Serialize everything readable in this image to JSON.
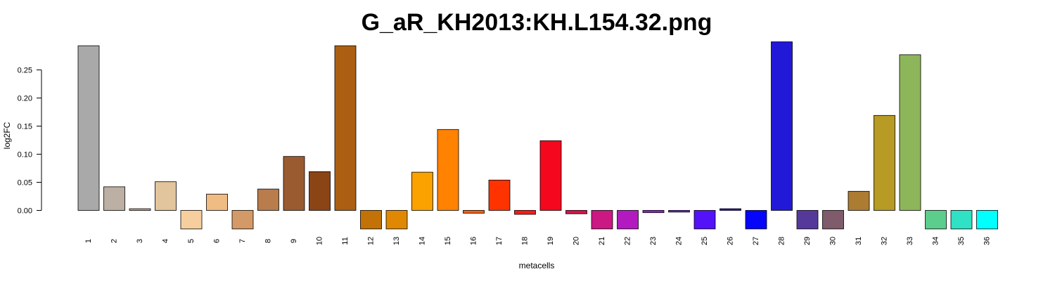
{
  "chart_data": {
    "type": "bar",
    "title": "G_aR_KH2013:KH.L154.32.png",
    "xlabel": "metacells",
    "ylabel": "log2FC",
    "ylim": [
      -0.034,
      0.3
    ],
    "yticks": [
      0.0,
      0.05,
      0.1,
      0.15,
      0.2,
      0.25
    ],
    "ytick_labels": [
      "0.00",
      "0.05",
      "0.10",
      "0.15",
      "0.20",
      "0.25"
    ],
    "categories": [
      "1",
      "2",
      "3",
      "4",
      "5",
      "6",
      "7",
      "8",
      "9",
      "10",
      "11",
      "12",
      "13",
      "14",
      "15",
      "16",
      "17",
      "18",
      "19",
      "20",
      "21",
      "22",
      "23",
      "24",
      "25",
      "26",
      "27",
      "28",
      "29",
      "30",
      "31",
      "32",
      "33",
      "34",
      "35",
      "36"
    ],
    "values": [
      0.293,
      0.042,
      0.003,
      0.051,
      -0.033,
      0.029,
      -0.033,
      0.038,
      0.096,
      0.069,
      0.293,
      -0.033,
      -0.033,
      0.068,
      0.144,
      -0.005,
      0.054,
      -0.007,
      0.124,
      -0.006,
      -0.033,
      -0.033,
      -0.004,
      -0.003,
      -0.033,
      0.003,
      -0.033,
      0.3,
      -0.033,
      -0.033,
      0.034,
      0.169,
      0.277,
      -0.033,
      -0.033,
      -0.033
    ],
    "colors": [
      "#a9a9a9",
      "#bcb0a4",
      "#c9a98a",
      "#e2c49d",
      "#f7cf9f",
      "#efbc84",
      "#d39a68",
      "#b87c4d",
      "#9b5b30",
      "#8b4416",
      "#ac5f12",
      "#c27207",
      "#e08802",
      "#fba100",
      "#ff8200",
      "#f96314",
      "#fe3300",
      "#fd1a14",
      "#f5071d",
      "#d81348",
      "#cb1882",
      "#b21ac0",
      "#8a22d2",
      "#6a21dc",
      "#5312f7",
      "#2b10e3",
      "#0505fa",
      "#2219d8",
      "#54399b",
      "#7f5b6b",
      "#ad7c33",
      "#b89b25",
      "#8db65a",
      "#5ccd8c",
      "#2fe1c5",
      "#00ffff"
    ],
    "legend": "none",
    "grid": false
  }
}
